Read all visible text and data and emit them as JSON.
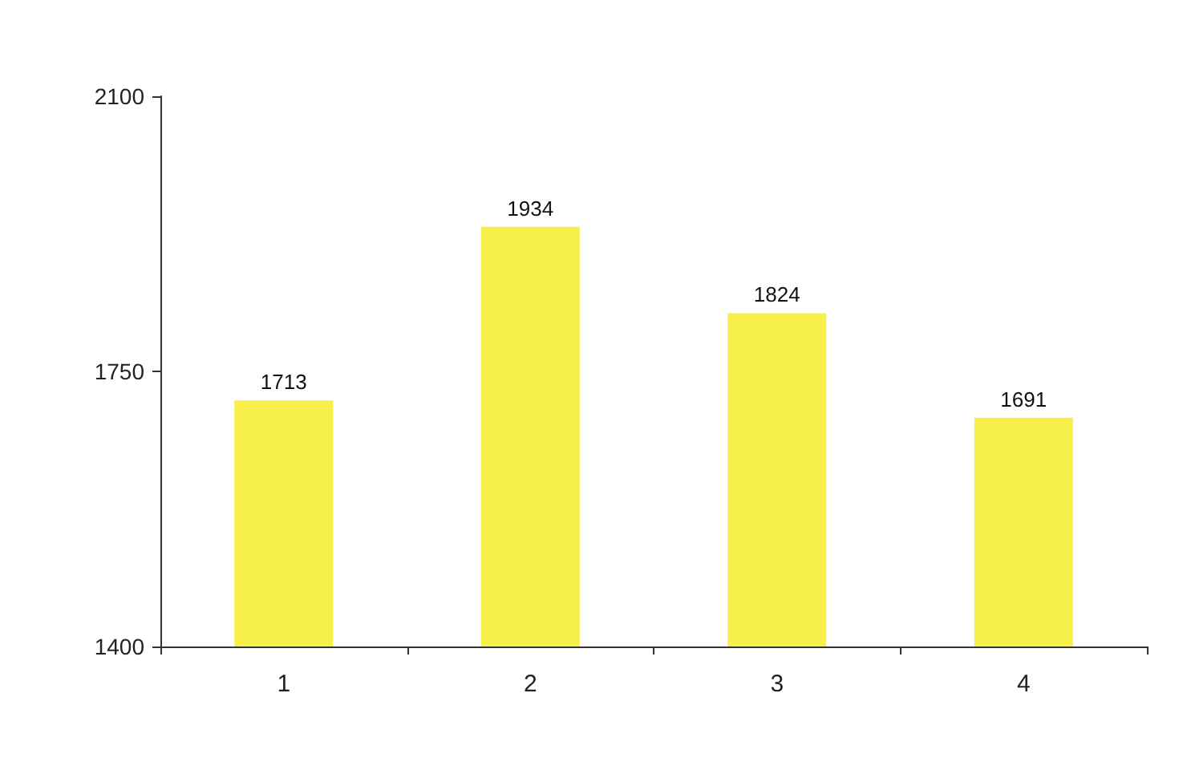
{
  "chart_data": {
    "type": "bar",
    "categories": [
      "1",
      "2",
      "3",
      "4"
    ],
    "values": [
      1713,
      1934,
      1824,
      1691
    ],
    "color": "#f7f04a",
    "ylim": [
      1400,
      2100
    ],
    "yticks": [
      1400,
      1750,
      2100
    ],
    "grid": false,
    "data_labels": true
  }
}
